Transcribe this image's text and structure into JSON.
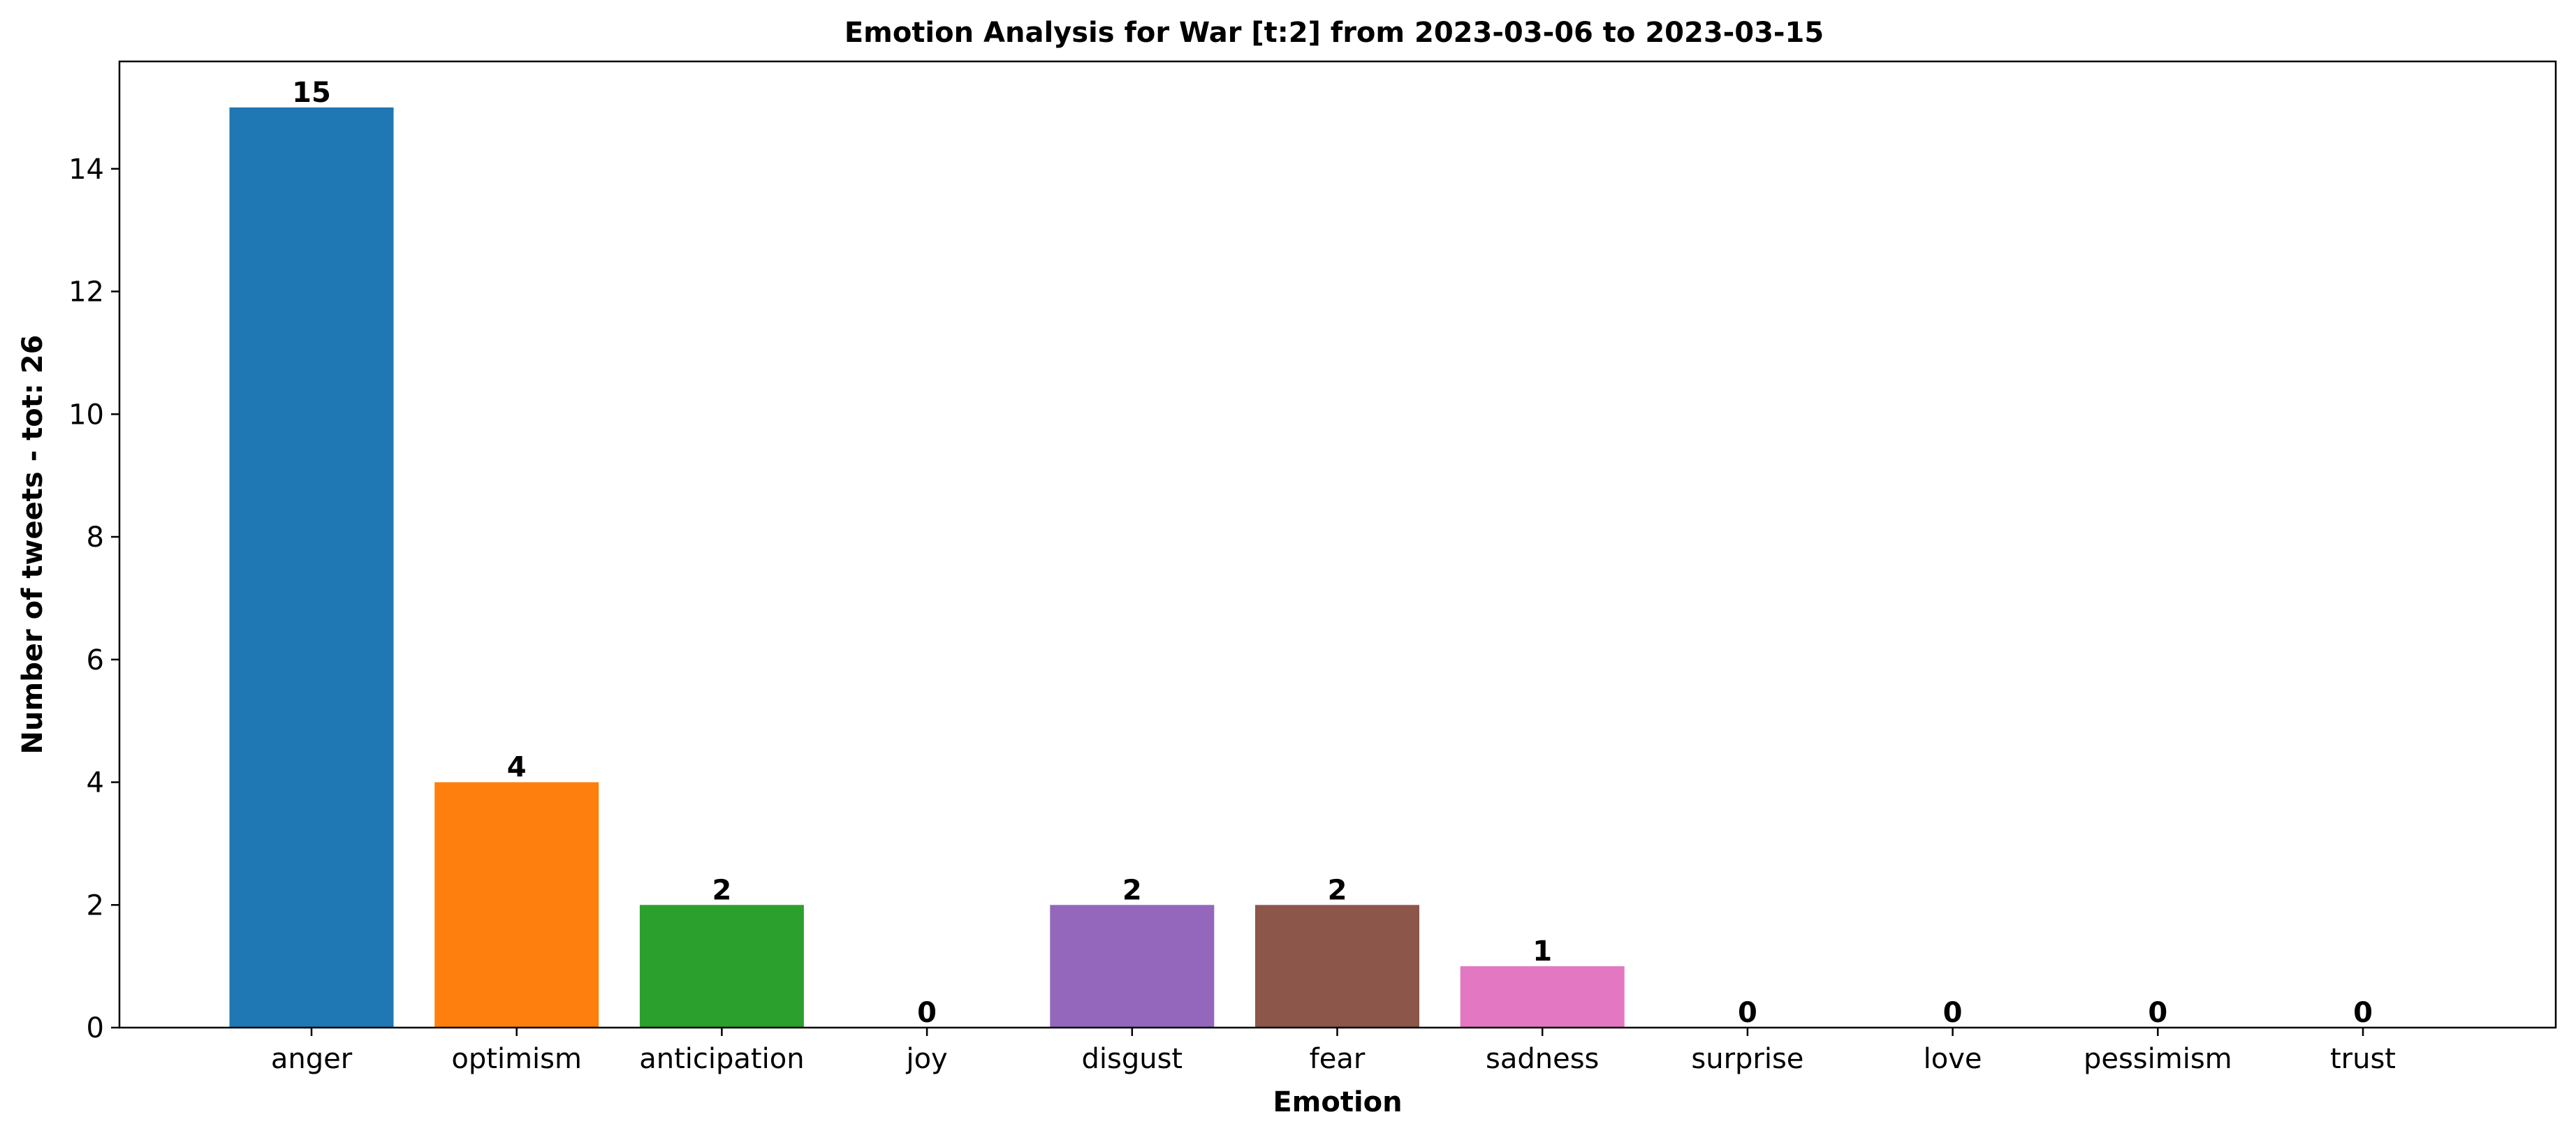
{
  "chart_data": {
    "type": "bar",
    "title": "Emotion Analysis for War [t:2] from 2023-03-06 to 2023-03-15",
    "xlabel": "Emotion",
    "ylabel": "Number of tweets - tot: 26",
    "categories": [
      "anger",
      "optimism",
      "anticipation",
      "joy",
      "disgust",
      "fear",
      "sadness",
      "surprise",
      "love",
      "pessimism",
      "trust"
    ],
    "values": [
      15,
      4,
      2,
      0,
      2,
      2,
      1,
      0,
      0,
      0,
      0
    ],
    "data_labels": [
      "15",
      "4",
      "2",
      "0",
      "2",
      "2",
      "1",
      "0",
      "0",
      "0",
      "0"
    ],
    "colors": [
      "#1f77b4",
      "#ff7f0e",
      "#2ca02c",
      "#d62728",
      "#9467bd",
      "#8c564b",
      "#e377c2",
      "#7f7f7f",
      "#bcbd22",
      "#17becf",
      "#1f77b4"
    ],
    "yticks": [
      0,
      2,
      4,
      6,
      8,
      10,
      12,
      14
    ],
    "ylim": [
      0,
      15.75
    ],
    "grid": false,
    "legend": "none"
  }
}
